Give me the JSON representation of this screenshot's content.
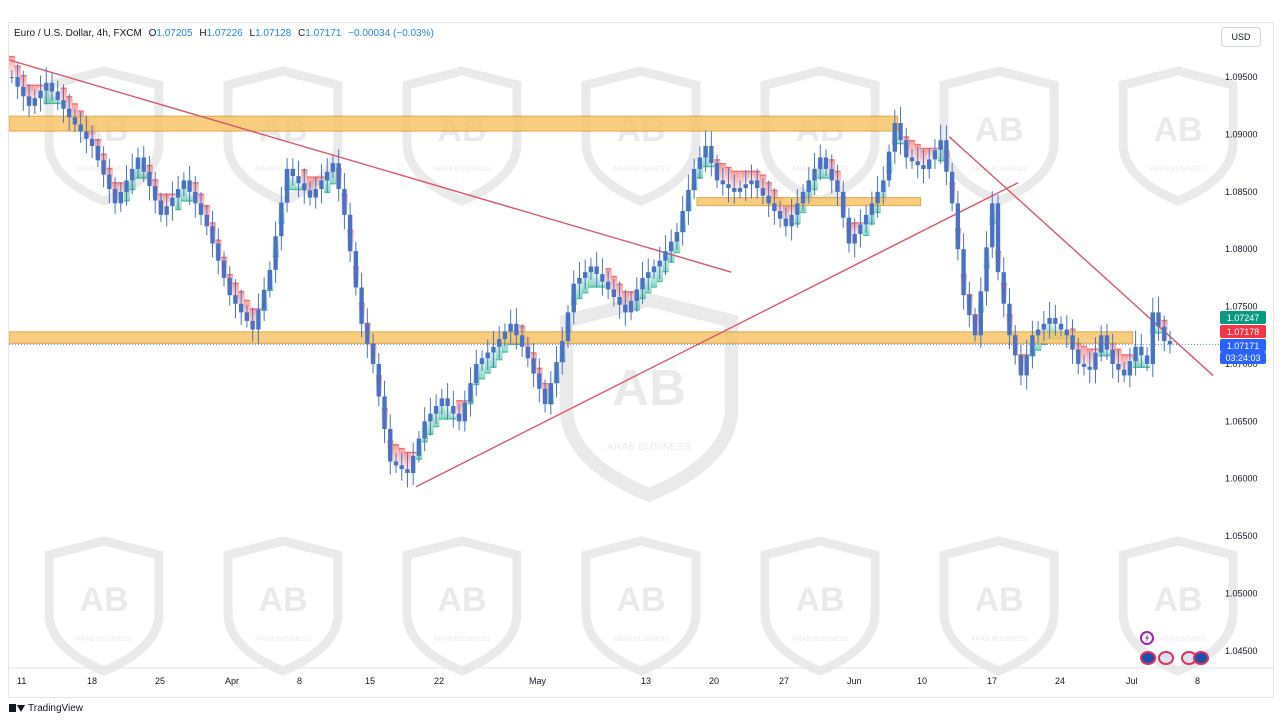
{
  "legend": {
    "symbol": "Euro / U.S. Dollar, 4h, FXCM",
    "open_label": "O",
    "open": "1.07205",
    "high_label": "H",
    "high": "1.07226",
    "low_label": "L",
    "low": "1.07128",
    "close_label": "C",
    "close": "1.07171",
    "change": "−0.00034 (−0.03%)"
  },
  "currency_button": "USD",
  "price_labels": {
    "upper": "1.07247",
    "middle": "1.07178",
    "last": "1.07171",
    "countdown": "03:24:03"
  },
  "footer": {
    "brand": "TradingView"
  },
  "watermark": {
    "text": "ARAB BUSINESS"
  },
  "colors": {
    "candle": "#4a72c4",
    "zone_fill": "#f7c56a",
    "zone_border": "#d89a2a",
    "trendline": "#d9586a",
    "band_up": "#27b58a",
    "band_down": "#ef5350",
    "label_green": "#089981",
    "label_red": "#f23645",
    "label_blue": "#2962ff"
  },
  "chart_data": {
    "type": "line",
    "title": "Euro / U.S. Dollar, 4h, FXCM",
    "x_tick_labels": [
      "11",
      "18",
      "25",
      "Apr",
      "8",
      "15",
      "22",
      "May",
      "13",
      "20",
      "27",
      "Jun",
      "10",
      "17",
      "24",
      "Jul",
      "8"
    ],
    "y_tick_labels": [
      "1.09500",
      "1.09000",
      "1.08500",
      "1.08000",
      "1.07500",
      "1.07000",
      "1.06500",
      "1.06000",
      "1.05500",
      "1.05000",
      "1.04500"
    ],
    "ylim": [
      1.0435,
      1.0985
    ],
    "series": [
      {
        "values": [
          [
            0,
            1.095
          ],
          [
            3,
            1.0925
          ],
          [
            6,
            1.0945
          ],
          [
            10,
            1.0915
          ],
          [
            14,
            1.089
          ],
          [
            18,
            1.084
          ],
          [
            22,
            1.088
          ],
          [
            26,
            1.083
          ],
          [
            30,
            1.086
          ],
          [
            34,
            1.082
          ],
          [
            38,
            1.076
          ],
          [
            42,
            1.073
          ],
          [
            45,
            1.0782
          ],
          [
            48,
            1.087
          ],
          [
            52,
            1.0845
          ],
          [
            56,
            1.0875
          ],
          [
            58,
            1.083
          ],
          [
            61,
            1.0735
          ],
          [
            63,
            1.07
          ],
          [
            66,
            1.0615
          ],
          [
            69,
            1.0605
          ],
          [
            72,
            1.065
          ],
          [
            75,
            1.067
          ],
          [
            78,
            1.065
          ],
          [
            81,
            1.07
          ],
          [
            84,
            1.0715
          ],
          [
            87,
            1.0735
          ],
          [
            90,
            1.0705
          ],
          [
            93,
            1.0665
          ],
          [
            96,
            1.072
          ],
          [
            98,
            1.077
          ],
          [
            101,
            1.0785
          ],
          [
            104,
            1.0765
          ],
          [
            107,
            1.0745
          ],
          [
            110,
            1.0775
          ],
          [
            113,
            1.079
          ],
          [
            116,
            1.0815
          ],
          [
            119,
            1.087
          ],
          [
            121,
            1.089
          ],
          [
            123,
            1.086
          ],
          [
            126,
            1.085
          ],
          [
            129,
            1.086
          ],
          [
            132,
            1.084
          ],
          [
            135,
            1.082
          ],
          [
            138,
            1.085
          ],
          [
            141,
            1.088
          ],
          [
            144,
            1.085
          ],
          [
            146,
            1.0805
          ],
          [
            149,
            1.083
          ],
          [
            152,
            1.086
          ],
          [
            154,
            1.091
          ],
          [
            156,
            1.088
          ],
          [
            159,
            1.087
          ],
          [
            162,
            1.0895
          ],
          [
            164,
            1.084
          ],
          [
            166,
            1.076
          ],
          [
            168,
            1.0725
          ],
          [
            171,
            1.084
          ],
          [
            172,
            1.078
          ],
          [
            174,
            1.0725
          ],
          [
            176,
            1.069
          ],
          [
            178,
            1.0725
          ],
          [
            181,
            1.074
          ],
          [
            184,
            1.0725
          ],
          [
            186,
            1.07
          ],
          [
            188,
            1.0695
          ],
          [
            190,
            1.0725
          ],
          [
            192,
            1.07
          ],
          [
            194,
            1.069
          ],
          [
            196,
            1.0715
          ],
          [
            198,
            1.07
          ],
          [
            199,
            1.0745
          ],
          [
            201,
            1.072
          ],
          [
            202,
            1.0717
          ]
        ]
      }
    ],
    "horizontal_zones": [
      {
        "from_x": 0,
        "to_x": 155,
        "y_low": 1.0903,
        "y_high": 1.0916
      },
      {
        "from_x": 120,
        "to_x": 159,
        "y_low": 1.0838,
        "y_high": 1.0845
      },
      {
        "from_x": 0,
        "to_x": 196,
        "y_low": 1.0718,
        "y_high": 1.0728
      }
    ],
    "trendlines": [
      {
        "x1": 0,
        "y1": 1.0965,
        "x2": 126,
        "y2": 1.078
      },
      {
        "x1": 71,
        "y1": 1.0593,
        "x2": 176,
        "y2": 1.0858
      },
      {
        "x1": 164,
        "y1": 1.0898,
        "x2": 210,
        "y2": 1.069
      }
    ],
    "last_price": 1.07171,
    "grid": false
  }
}
